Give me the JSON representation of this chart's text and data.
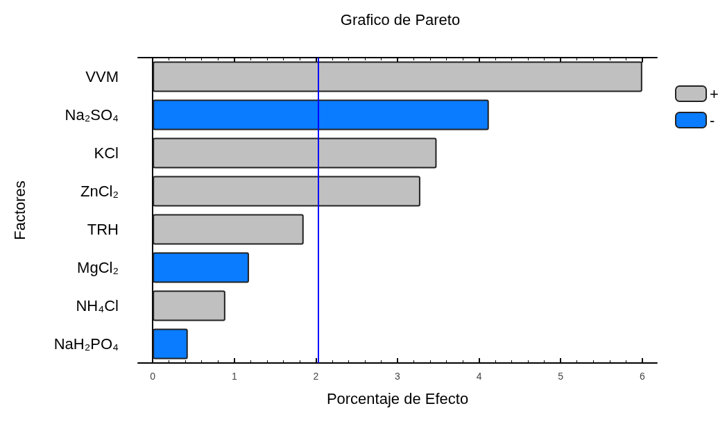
{
  "chart_data": {
    "type": "bar",
    "title": "Grafico de Pareto",
    "xlabel": "Porcentaje de Efecto",
    "ylabel": "Factores",
    "orientation": "horizontal",
    "stacked": true,
    "categories": [
      "VVM",
      "Na₂SO₄",
      "KCl",
      "ZnCl₂",
      "TRH",
      "MgCl₂",
      "NH₄Cl",
      "NaH₂PO₄"
    ],
    "series": [
      {
        "name": "+",
        "color": "#c0c0c0",
        "values": [
          6.0,
          null,
          3.48,
          3.28,
          1.85,
          null,
          0.89,
          null
        ]
      },
      {
        "name": "-",
        "color": "#0a7cff",
        "values": [
          null,
          4.12,
          null,
          null,
          null,
          1.18,
          null,
          0.43
        ]
      }
    ],
    "xlim": [
      -0.18,
      6.18
    ],
    "xticks": [
      0,
      1,
      2,
      3,
      4,
      5,
      6
    ],
    "ref_lines": [
      {
        "axis": "x",
        "value": 2.03,
        "color": "#0000ff",
        "line_style": "solid"
      }
    ],
    "grid": false,
    "legend": "top right"
  }
}
